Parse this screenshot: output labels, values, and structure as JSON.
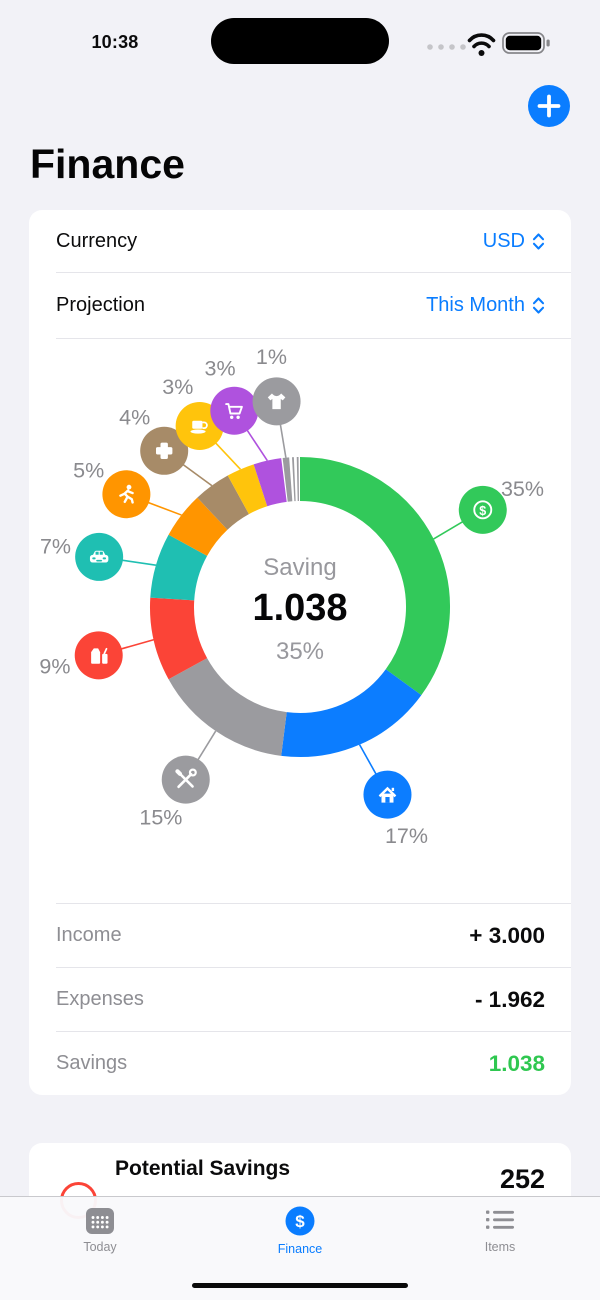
{
  "status_bar": {
    "time": "10:38"
  },
  "header": {
    "title": "Finance"
  },
  "controls": {
    "currency_label": "Currency",
    "currency_value": "USD",
    "projection_label": "Projection",
    "projection_value": "This Month"
  },
  "chart_data": {
    "type": "pie",
    "style": "donut",
    "center": {
      "label": "Saving",
      "value": "1.038",
      "percent": "35%"
    },
    "slices": [
      {
        "name": "savings",
        "percent": 35,
        "label": "35%",
        "color": "#32C95A",
        "icon": "dollar-icon",
        "callout_angle": 62
      },
      {
        "name": "housing",
        "percent": 17,
        "label": "17%",
        "color": "#0C7DFF",
        "icon": "house-icon",
        "callout_angle": 155
      },
      {
        "name": "maintenance",
        "percent": 15,
        "label": "15%",
        "color": "#9B9B9F",
        "icon": "tools-icon",
        "callout_angle": 213.5
      },
      {
        "name": "groceries",
        "percent": 9,
        "label": "9%",
        "color": "#FB4437",
        "icon": "groceries-icon",
        "callout_angle": 256.5
      },
      {
        "name": "transport",
        "percent": 7,
        "label": "7%",
        "color": "#1FBFB2",
        "icon": "car-icon",
        "callout_angle": 284
      },
      {
        "name": "sport",
        "percent": 5,
        "label": "5%",
        "color": "#FF9500",
        "icon": "runner-icon",
        "callout_angle": 303
      },
      {
        "name": "health",
        "percent": 4,
        "label": "4%",
        "color": "#A78B68",
        "icon": "medical-cross-icon",
        "callout_angle": 319
      },
      {
        "name": "coffee",
        "percent": 3,
        "label": "3%",
        "color": "#FFC40C",
        "icon": "coffee-icon",
        "callout_angle": 331
      },
      {
        "name": "shopping",
        "percent": 3,
        "label": "3%",
        "color": "#AF52DE",
        "icon": "cart-icon",
        "callout_angle": 341.5
      },
      {
        "name": "clothing",
        "percent": 1,
        "label": "1%",
        "color": "#9B9B9F",
        "icon": "shirt-icon",
        "callout_angle": 353.5,
        "separated": true
      },
      {
        "name": "other-1",
        "percent": 0.5,
        "color": "#9B9B9F",
        "separated": true
      },
      {
        "name": "other-2",
        "percent": 0.5,
        "color": "#9B9B9F",
        "separated": true
      }
    ]
  },
  "summary": {
    "rows": [
      {
        "label": "Income",
        "value": "+ 3.000"
      },
      {
        "label": "Expenses",
        "value": "- 1.962"
      },
      {
        "label": "Savings",
        "value": "1.038"
      }
    ]
  },
  "potential": {
    "title": "Potential Savings",
    "value": "252"
  },
  "tab_bar": {
    "tabs": [
      {
        "label": "Today"
      },
      {
        "label": "Finance"
      },
      {
        "label": "Items"
      }
    ]
  },
  "colors": {
    "accent_blue": "#0A7DFF",
    "savings_green": "#2FC750",
    "alert_red": "#FB4437",
    "percent_label_gray": "#8A8A8E"
  }
}
